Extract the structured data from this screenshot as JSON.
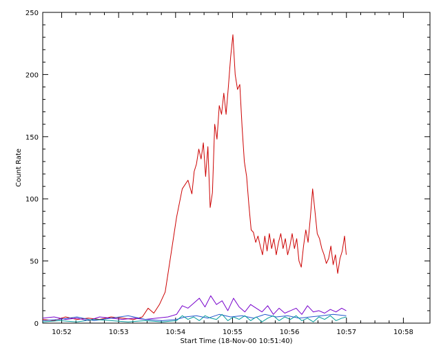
{
  "chart_data": {
    "type": "line",
    "xlabel": "Start Time (18-Nov-00 10:51:40)",
    "ylabel": "Count Rate",
    "x_unit": "minutes after 10:51:40",
    "xlim": [
      0,
      6.8
    ],
    "ylim": [
      0,
      250
    ],
    "grid": false,
    "x_ticks": [
      {
        "value": 0.333,
        "label": "10:52"
      },
      {
        "value": 1.333,
        "label": "10:53"
      },
      {
        "value": 2.333,
        "label": "10:54"
      },
      {
        "value": 3.333,
        "label": "10:55"
      },
      {
        "value": 4.333,
        "label": "10:56"
      },
      {
        "value": 5.333,
        "label": "10:57"
      },
      {
        "value": 6.333,
        "label": "10:58"
      }
    ],
    "y_ticks": [
      {
        "value": 0,
        "label": "0"
      },
      {
        "value": 50,
        "label": "50"
      },
      {
        "value": 100,
        "label": "100"
      },
      {
        "value": 150,
        "label": "150"
      },
      {
        "value": 200,
        "label": "200"
      },
      {
        "value": 250,
        "label": "250"
      }
    ],
    "series": [
      {
        "color": "#cc0000",
        "x": [
          0.0,
          0.2,
          0.4,
          0.6,
          0.8,
          1.0,
          1.2,
          1.4,
          1.6,
          1.75,
          1.85,
          1.95,
          2.05,
          2.15,
          2.25,
          2.35,
          2.45,
          2.55,
          2.62,
          2.66,
          2.7,
          2.74,
          2.78,
          2.82,
          2.86,
          2.9,
          2.94,
          2.98,
          3.02,
          3.06,
          3.1,
          3.14,
          3.18,
          3.22,
          3.26,
          3.3,
          3.34,
          3.38,
          3.42,
          3.46,
          3.5,
          3.54,
          3.58,
          3.62,
          3.66,
          3.7,
          3.74,
          3.78,
          3.82,
          3.86,
          3.9,
          3.94,
          3.98,
          4.02,
          4.06,
          4.1,
          4.14,
          4.18,
          4.22,
          4.26,
          4.3,
          4.34,
          4.38,
          4.42,
          4.46,
          4.5,
          4.54,
          4.58,
          4.62,
          4.66,
          4.7,
          4.74,
          4.78,
          4.82,
          4.86,
          4.9,
          4.94,
          4.98,
          5.02,
          5.06,
          5.1,
          5.14,
          5.18,
          5.22,
          5.26,
          5.3,
          5.33
        ],
        "values": [
          3,
          2,
          5,
          3,
          4,
          3,
          5,
          4,
          3,
          5,
          12,
          8,
          15,
          25,
          55,
          85,
          108,
          115,
          104,
          122,
          128,
          140,
          132,
          145,
          118,
          142,
          93,
          105,
          160,
          148,
          175,
          168,
          185,
          168,
          190,
          214,
          232,
          200,
          188,
          192,
          158,
          130,
          118,
          95,
          75,
          73,
          65,
          70,
          62,
          55,
          70,
          58,
          72,
          60,
          68,
          55,
          65,
          72,
          60,
          68,
          55,
          62,
          72,
          60,
          68,
          50,
          45,
          62,
          75,
          65,
          85,
          108,
          90,
          72,
          68,
          60,
          55,
          48,
          52,
          62,
          47,
          55,
          40,
          52,
          58,
          70,
          55
        ]
      },
      {
        "color": "#7700cc",
        "x": [
          0.0,
          0.2,
          0.4,
          0.6,
          0.8,
          1.0,
          1.2,
          1.4,
          1.6,
          1.8,
          2.0,
          2.2,
          2.35,
          2.45,
          2.55,
          2.65,
          2.75,
          2.85,
          2.95,
          3.05,
          3.15,
          3.25,
          3.35,
          3.45,
          3.55,
          3.65,
          3.75,
          3.85,
          3.95,
          4.05,
          4.15,
          4.25,
          4.35,
          4.45,
          4.55,
          4.65,
          4.75,
          4.85,
          4.95,
          5.05,
          5.15,
          5.25,
          5.33
        ],
        "values": [
          4,
          5,
          3,
          4,
          2,
          5,
          4,
          3,
          4,
          3,
          4,
          5,
          7,
          14,
          12,
          16,
          20,
          13,
          22,
          15,
          18,
          10,
          20,
          13,
          9,
          15,
          12,
          9,
          14,
          7,
          12,
          8,
          10,
          12,
          7,
          14,
          9,
          10,
          8,
          11,
          9,
          12,
          10
        ]
      },
      {
        "color": "#2255cc",
        "x": [
          0.0,
          0.3,
          0.6,
          0.9,
          1.2,
          1.5,
          1.8,
          2.1,
          2.35,
          2.5,
          2.7,
          2.9,
          3.1,
          3.3,
          3.5,
          3.7,
          3.9,
          4.1,
          4.3,
          4.5,
          4.7,
          4.9,
          5.1,
          5.33
        ],
        "values": [
          2,
          3,
          5,
          2,
          4,
          6,
          3,
          2,
          3,
          5,
          6,
          4,
          7,
          5,
          6,
          4,
          7,
          5,
          6,
          4,
          5,
          6,
          7,
          6
        ]
      },
      {
        "color": "#009999",
        "x": [
          0.0,
          0.3,
          0.6,
          0.9,
          1.2,
          1.5,
          1.8,
          2.1,
          2.35,
          2.45,
          2.55,
          2.65,
          2.75,
          2.85,
          2.95,
          3.05,
          3.15,
          3.25,
          3.35,
          3.45,
          3.55,
          3.65,
          3.75,
          3.85,
          3.95,
          4.05,
          4.15,
          4.25,
          4.35,
          4.45,
          4.55,
          4.65,
          4.75,
          4.85,
          4.95,
          5.05,
          5.15,
          5.25,
          5.33
        ],
        "values": [
          1,
          2,
          1,
          3,
          2,
          1,
          2,
          1,
          2,
          6,
          3,
          5,
          2,
          6,
          4,
          3,
          7,
          2,
          5,
          3,
          6,
          2,
          5,
          1,
          4,
          6,
          2,
          5,
          3,
          6,
          2,
          4,
          1,
          5,
          3,
          6,
          2,
          4,
          5
        ]
      }
    ]
  }
}
